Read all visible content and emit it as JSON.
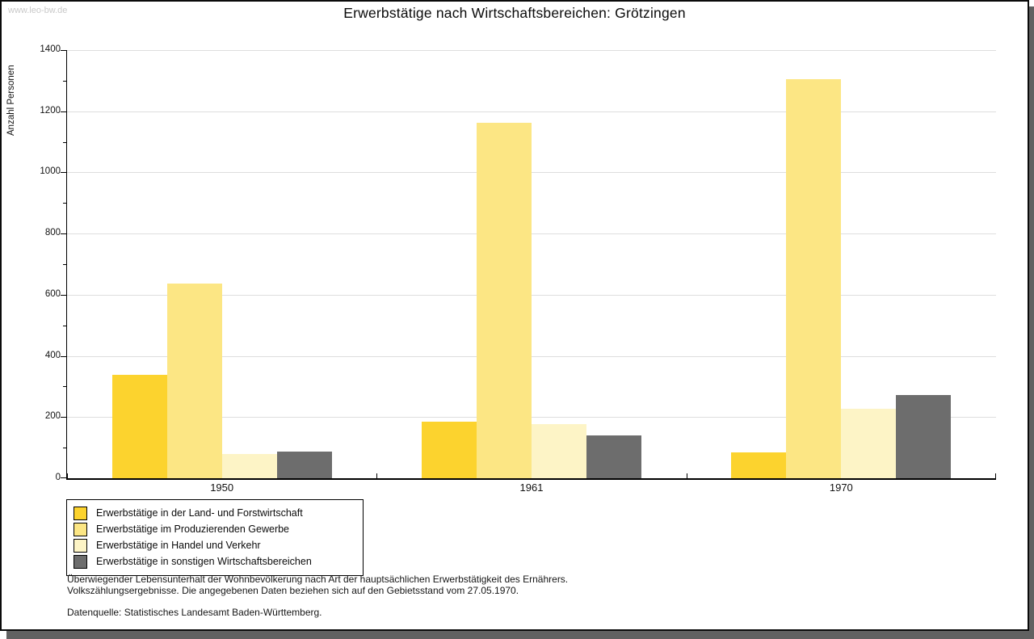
{
  "watermark": "www.leo-bw.de",
  "title": "Erwerbstätige nach Wirtschaftsbereichen: Grötzingen",
  "chart_data": {
    "type": "bar",
    "title": "Erwerbstätige nach Wirtschaftsbereichen: Grötzingen",
    "xlabel": "",
    "ylabel": "Anzahl Personen",
    "categories": [
      "1950",
      "1961",
      "1970"
    ],
    "series": [
      {
        "name": "Erwerbstätige in der Land- und Forstwirtschaft",
        "color": "#FCD32E",
        "values": [
          337,
          184,
          84
        ]
      },
      {
        "name": "Erwerbstätige im Produzierenden Gewerbe",
        "color": "#FCE684",
        "values": [
          637,
          1162,
          1304
        ]
      },
      {
        "name": "Erwerbstätige in Handel und Verkehr",
        "color": "#FDF4C6",
        "values": [
          78,
          177,
          226
        ]
      },
      {
        "name": "Erwerbstätige in sonstigen Wirtschaftsbereichen",
        "color": "#6D6D6D",
        "values": [
          87,
          141,
          273
        ]
      }
    ],
    "ylim": [
      0,
      1400
    ],
    "ytick_step": 200,
    "minor_tick_step": 100,
    "grid": true,
    "gridline_color": "#dedede",
    "legend_position": "bottom-left"
  },
  "footer": {
    "line1": "Überwiegender Lebensunterhalt der Wohnbevölkerung nach Art der hauptsächlichen Erwerbstätigkeit des Ernährers.",
    "line2": "Volkszählungsergebnisse. Die angegebenen Daten beziehen sich auf den Gebietsstand vom 27.05.1970.",
    "source": "Datenquelle: Statistisches Landesamt Baden-Württemberg."
  }
}
